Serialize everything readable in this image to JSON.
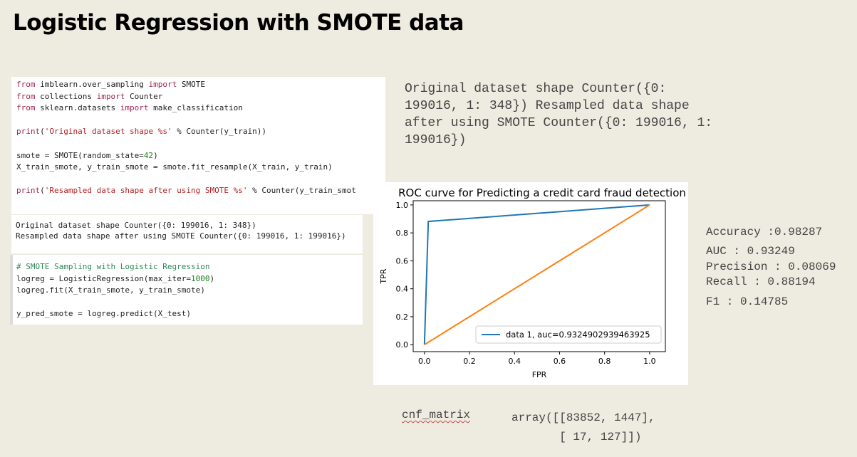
{
  "slide": {
    "title": "Logistic Regression with SMOTE data"
  },
  "code_cell_1": {
    "lines": [
      "from imblearn.over_sampling import SMOTE",
      "from collections import Counter",
      "from sklearn.datasets import make_classification",
      "",
      "print('Original dataset shape %s' % Counter(y_train))",
      "",
      "smote = SMOTE(random_state=42)",
      "X_train_smote, y_train_smote = smote.fit_resample(X_train, y_train)",
      "",
      "print('Resampled data shape after using SMOTE %s' % Counter(y_train_smot"
    ],
    "output_lines": [
      "Original dataset shape Counter({0: 199016, 1: 348})",
      "Resampled data shape after using SMOTE Counter({0: 199016, 1: 199016})"
    ]
  },
  "code_cell_2": {
    "lines": [
      "# SMOTE Sampling with Logistic Regression",
      "logreg = LogisticRegression(max_iter=1000)",
      "logreg.fit(X_train_smote, y_train_smote)",
      "",
      "y_pred_smote = logreg.predict(X_test)"
    ]
  },
  "console_output": {
    "lines": [
      "Original dataset shape Counter({0:",
      "199016, 1: 348}) Resampled data shape",
      "after using SMOTE Counter({0: 199016, 1:",
      "199016})"
    ]
  },
  "metrics": {
    "accuracy": "Accuracy :0.98287",
    "auc": "AUC : 0.93249",
    "precision": "Precision : 0.08069",
    "recall": "Recall : 0.88194",
    "f1": "F1 : 0.14785"
  },
  "confusion_matrix": {
    "label": "cnf_matrix",
    "line1": "array([[83852, 1447],",
    "line2": "       [ 17, 127]])"
  },
  "chart_data": {
    "type": "line",
    "title": "ROC curve for Predicting a credit card fraud detection",
    "xlabel": "FPR",
    "ylabel": "TPR",
    "xlim": [
      -0.05,
      1.07
    ],
    "ylim": [
      -0.05,
      1.03
    ],
    "x_ticks": [
      "0.0",
      "0.2",
      "0.4",
      "0.6",
      "0.8",
      "1.0"
    ],
    "y_ticks": [
      "0.0",
      "0.2",
      "0.4",
      "0.6",
      "0.8",
      "1.0"
    ],
    "x_tick_values": [
      0,
      0.2,
      0.4,
      0.6,
      0.8,
      1.0
    ],
    "y_tick_values": [
      0,
      0.2,
      0.4,
      0.6,
      0.8,
      1.0
    ],
    "legend_position": "lower-right",
    "series": [
      {
        "name": "data 1, auc=0.9324902939463925",
        "color": "#1f77b4",
        "x": [
          0,
          0.017,
          1
        ],
        "y": [
          0,
          0.882,
          1
        ]
      },
      {
        "color": "#ff7f0e",
        "x": [
          0,
          1
        ],
        "y": [
          0,
          1
        ]
      }
    ]
  }
}
